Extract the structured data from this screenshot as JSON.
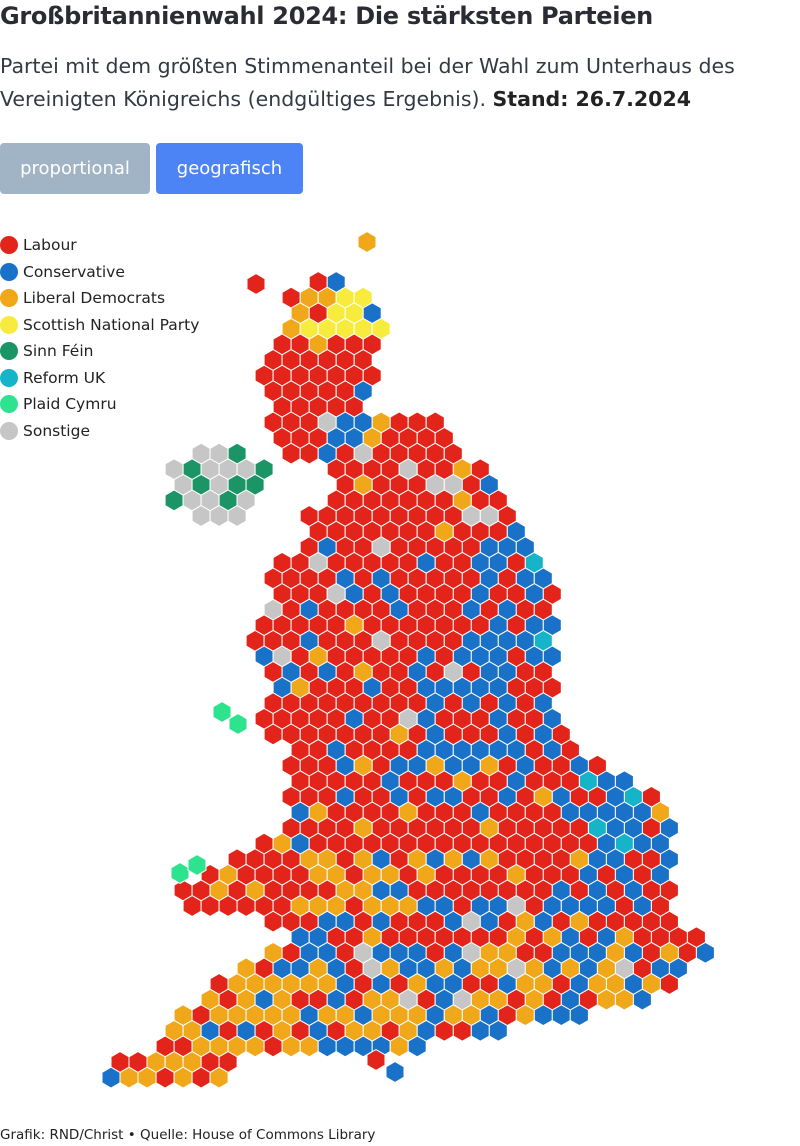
{
  "header": {
    "title": "Großbritannienwahl 2024: Die stärksten Parteien",
    "subtitle": "Partei mit dem größten Stimmenanteil bei der Wahl zum Unterhaus des Vereinigten Königreichs (endgültiges Ergebnis).",
    "stand": "Stand: 26.7.2024"
  },
  "toggle": {
    "proportional": "proportional",
    "geografisch": "geografisch",
    "active": "geografisch"
  },
  "legend": [
    {
      "label": "Labour",
      "color": "#e3241a"
    },
    {
      "label": "Conservative",
      "color": "#1a72c8"
    },
    {
      "label": "Liberal Democrats",
      "color": "#f0a719"
    },
    {
      "label": "Scottish National Party",
      "color": "#f7eb3e"
    },
    {
      "label": "Sinn Féin",
      "color": "#1b9466"
    },
    {
      "label": "Reform UK",
      "color": "#16b4c9"
    },
    {
      "label": "Plaid Cymru",
      "color": "#2ee38e"
    },
    {
      "label": "Sonstige",
      "color": "#c6c6c6"
    }
  ],
  "footer": "Grafik: RND/Christ • Quelle: House of Commons Library"
}
